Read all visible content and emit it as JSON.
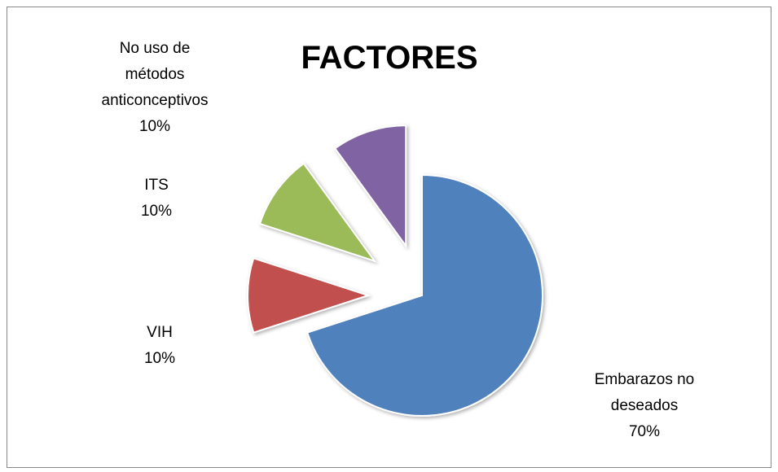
{
  "chart_data": {
    "type": "pie",
    "title": "FACTORES",
    "categories": [
      "Embarazos no deseados",
      "VIH",
      "ITS",
      "No uso de métodos anticonceptivos"
    ],
    "values": [
      70,
      10,
      10,
      10
    ],
    "value_labels": [
      "70%",
      "10%",
      "10%",
      "10%"
    ],
    "colors": [
      "#4f81bd",
      "#c0504d",
      "#9bbb59",
      "#8064a2"
    ]
  }
}
